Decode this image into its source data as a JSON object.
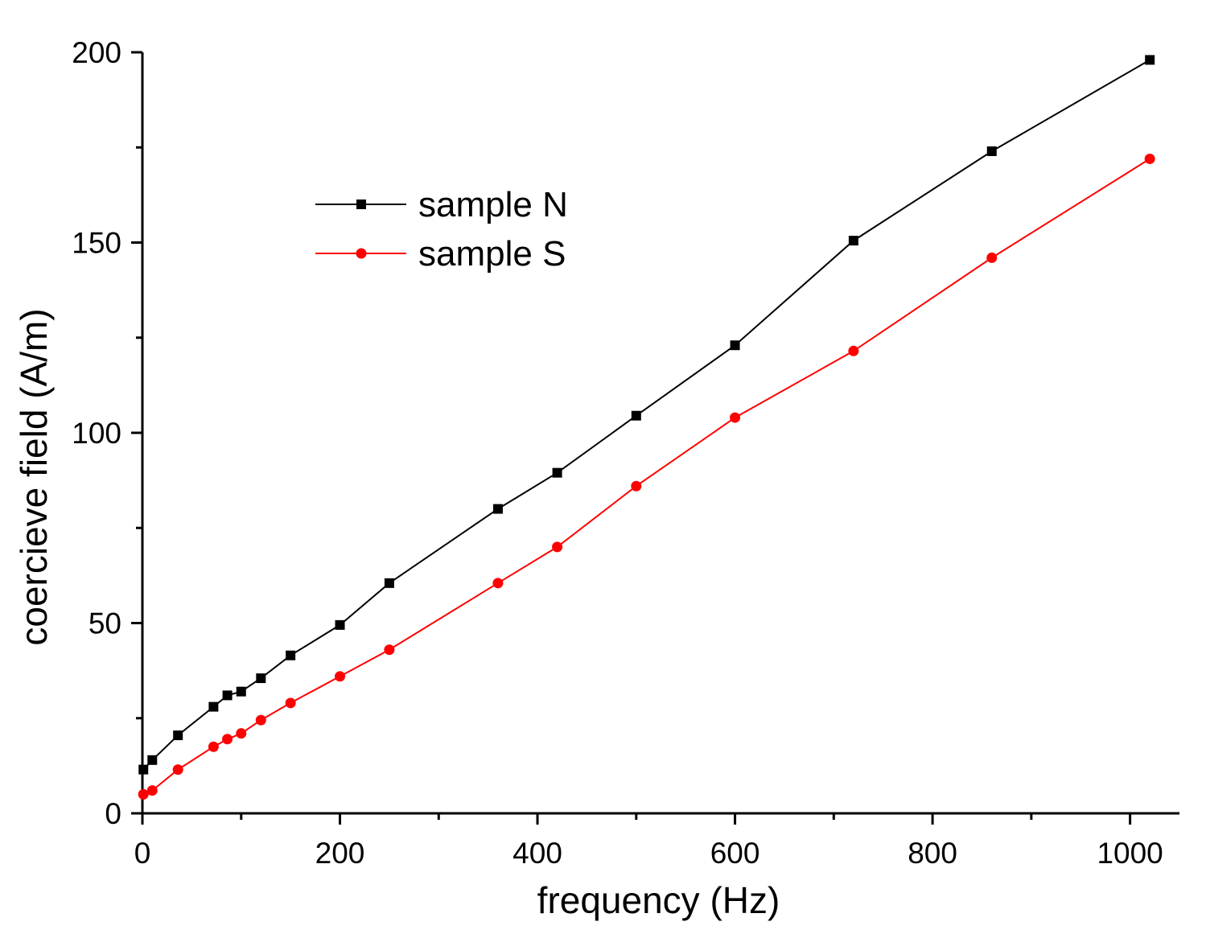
{
  "chart_data": {
    "type": "line",
    "title": "",
    "xlabel": "frequency (Hz)",
    "ylabel": "coercieve field (A/m)",
    "xlim": [
      0,
      1050
    ],
    "ylim": [
      0,
      200
    ],
    "xticks": [
      0,
      200,
      400,
      600,
      800,
      1000
    ],
    "yticks": [
      0,
      50,
      100,
      150,
      200
    ],
    "xminor_ticks": [
      100,
      300,
      500,
      700,
      900
    ],
    "yminor_ticks": [
      25,
      75,
      125,
      175
    ],
    "grid": false,
    "legend_position": "upper-left-center",
    "series": [
      {
        "name": "sample N",
        "color": "#000000",
        "marker": "square",
        "x": [
          1,
          10,
          36,
          72,
          86,
          100,
          120,
          150,
          200,
          250,
          360,
          420,
          500,
          600,
          720,
          860,
          1020
        ],
        "y": [
          11.5,
          14,
          20.5,
          28,
          31,
          32,
          35.5,
          41.5,
          49.5,
          60.5,
          80,
          89.5,
          104.5,
          123,
          150.5,
          174,
          198
        ]
      },
      {
        "name": "sample S",
        "color": "#ff0000",
        "marker": "circle",
        "x": [
          1,
          10,
          36,
          72,
          86,
          100,
          120,
          150,
          200,
          250,
          360,
          420,
          500,
          600,
          720,
          860,
          1020
        ],
        "y": [
          5,
          6,
          11.5,
          17.5,
          19.5,
          21,
          24.5,
          29,
          36,
          43,
          60.5,
          70,
          86,
          104,
          121.5,
          146,
          172
        ]
      }
    ]
  }
}
